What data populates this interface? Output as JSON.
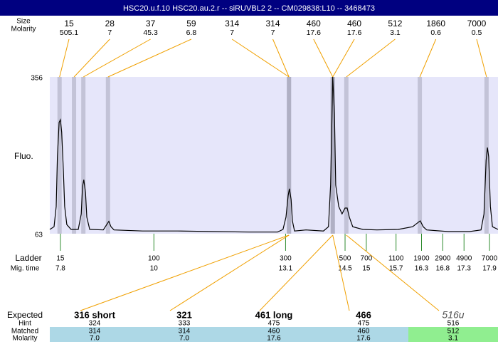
{
  "chart_data": {
    "type": "line",
    "title": "HSC20.u.f.10 HSC20.au.2.r -- siRUVBL2 2 -- CM029838:L10 -- 3468473",
    "y_label": "Fluo.",
    "ylim": [
      63,
      356
    ],
    "yticks": [
      63,
      356
    ],
    "xlim": [
      7.55,
      18.1
    ],
    "background": "#e6e6fa",
    "x": [
      7.55,
      7.65,
      7.7,
      7.73,
      7.77,
      7.8,
      7.83,
      7.87,
      7.9,
      7.95,
      8.05,
      8.22,
      8.29,
      8.32,
      8.35,
      8.39,
      8.42,
      8.49,
      8.81,
      8.89,
      8.94,
      8.99,
      9.06,
      9.73,
      10.56,
      11.4,
      12.24,
      12.91,
      13.04,
      13.11,
      13.16,
      13.19,
      13.23,
      13.26,
      13.31,
      13.58,
      13.99,
      14.11,
      14.16,
      14.2,
      14.21,
      14.25,
      14.28,
      14.35,
      14.43,
      14.5,
      14.55,
      14.6,
      14.68,
      14.92,
      15.25,
      15.75,
      16.09,
      16.22,
      16.27,
      16.34,
      16.42,
      16.93,
      17.43,
      17.7,
      17.77,
      17.82,
      17.85,
      17.88,
      17.92,
      17.97,
      18.1
    ],
    "series": [
      {
        "color": "#000000",
        "values": [
          71,
          76,
          114,
          207,
          271,
          276,
          253,
          180,
          114,
          80,
          71,
          71,
          100,
          151,
          164,
          140,
          94,
          71,
          70,
          80,
          86,
          76,
          70,
          68,
          68,
          67,
          66,
          66,
          71,
          94,
          134,
          147,
          127,
          87,
          68,
          70,
          68,
          76,
          154,
          313,
          356,
          287,
          154,
          114,
          100,
          111,
          111,
          94,
          76,
          71,
          70,
          71,
          76,
          84,
          87,
          76,
          70,
          67,
          67,
          70,
          100,
          200,
          224,
          207,
          114,
          76,
          71
        ]
      }
    ],
    "peaks": {
      "size_label": "Size",
      "molarity_label": "Molarity",
      "line_color": "#f0a000",
      "band_color": "#9a9aae",
      "items": [
        {
          "size": 15,
          "molarity": 505.1,
          "time": 7.78
        },
        {
          "size": 28,
          "molarity": 7,
          "time": 8.12
        },
        {
          "size": 37,
          "molarity": 45.3,
          "time": 8.34
        },
        {
          "size": 59,
          "molarity": 6.8,
          "time": 8.92
        },
        {
          "size": 314,
          "molarity": 7,
          "time": 13.18
        },
        {
          "size": 314,
          "molarity": 7,
          "time": 13.18
        },
        {
          "size": 460,
          "molarity": 17.6,
          "time": 14.21
        },
        {
          "size": 460,
          "molarity": 17.6,
          "time": 14.21
        },
        {
          "size": 512,
          "molarity": 3.1,
          "time": 14.53
        },
        {
          "size": 1860,
          "molarity": 0.6,
          "time": 16.26
        },
        {
          "size": 7000,
          "molarity": 0.5,
          "time": 17.83
        }
      ]
    },
    "ladder": {
      "label": "Ladder",
      "time_label": "Mig. time",
      "color": "#2e8b2e",
      "sizes": [
        15,
        100,
        300,
        500,
        700,
        1100,
        1900,
        2900,
        4900,
        7000
      ],
      "times": [
        7.8,
        10,
        13.1,
        14.5,
        15,
        15.7,
        16.3,
        16.8,
        17.3,
        17.9
      ]
    },
    "expected": {
      "label": "Expected",
      "hint_label": "Hint",
      "matched_label": "Matched",
      "molarity_label": "Molarity",
      "line_color": "#f0a000",
      "items": [
        {
          "name": "316 short",
          "hint": 324,
          "matched": 314,
          "molarity": "7.0",
          "time": 13.18,
          "color": "#add8e6",
          "font_style": "bold"
        },
        {
          "name": "321",
          "hint": 333,
          "matched": 314,
          "molarity": "7.0",
          "time": 13.18,
          "color": "#add8e6",
          "font_style": "bold"
        },
        {
          "name": "461 long",
          "hint": 475,
          "matched": 460,
          "molarity": "17.6",
          "time": 14.21,
          "color": "#add8e6",
          "font_style": "bold"
        },
        {
          "name": "466",
          "hint": 475,
          "matched": 460,
          "molarity": "17.6",
          "time": 14.21,
          "color": "#add8e6",
          "font_style": "bold"
        },
        {
          "name": "516u",
          "hint": 516,
          "matched": 512,
          "molarity": "3.1",
          "time": 14.53,
          "color": "#90ee90",
          "font_style": "italic"
        }
      ]
    }
  }
}
